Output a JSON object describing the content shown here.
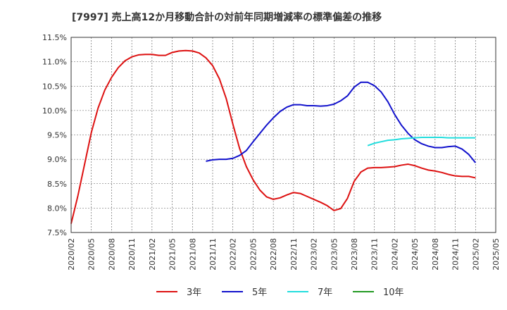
{
  "chart_data": {
    "type": "line",
    "title": "[7997]  売上高12か月移動合計の対前年同期増減率の標準偏差の推移",
    "xlabel": "",
    "ylabel": "",
    "ylim": [
      7.5,
      11.5
    ],
    "y_ticks": [
      "7.5%",
      "8.0%",
      "8.5%",
      "9.0%",
      "9.5%",
      "10.0%",
      "10.5%",
      "11.0%",
      "11.5%"
    ],
    "x_ticks": [
      "2020/02",
      "2020/05",
      "2020/08",
      "2020/11",
      "2021/02",
      "2021/05",
      "2021/08",
      "2021/11",
      "2022/02",
      "2022/05",
      "2022/08",
      "2022/11",
      "2023/02",
      "2023/05",
      "2023/08",
      "2023/11",
      "2024/02",
      "2024/05",
      "2024/08",
      "2024/11",
      "2025/02",
      "2025/05"
    ],
    "grid": true,
    "legend_position": "bottom",
    "series": [
      {
        "name": "3年",
        "color": "#dd1111",
        "start_index": 0,
        "values": [
          7.68,
          8.25,
          8.9,
          9.55,
          10.05,
          10.42,
          10.68,
          10.88,
          11.02,
          11.1,
          11.14,
          11.15,
          11.15,
          11.13,
          11.13,
          11.19,
          11.22,
          11.23,
          11.22,
          11.18,
          11.08,
          10.92,
          10.65,
          10.25,
          9.72,
          9.22,
          8.85,
          8.58,
          8.37,
          8.23,
          8.18,
          8.21,
          8.27,
          8.32,
          8.3,
          8.24,
          8.18,
          8.12,
          8.05,
          7.95,
          7.99,
          8.2,
          8.55,
          8.74,
          8.82,
          8.83,
          8.83,
          8.84,
          8.85,
          8.88,
          8.9,
          8.87,
          8.82,
          8.78,
          8.76,
          8.73,
          8.69,
          8.66,
          8.65,
          8.65,
          8.62
        ]
      },
      {
        "name": "5年",
        "color": "#1111cc",
        "start_index": 20,
        "values": [
          8.96,
          8.99,
          9.0,
          9.0,
          9.02,
          9.08,
          9.18,
          9.36,
          9.53,
          9.7,
          9.85,
          9.98,
          10.07,
          10.12,
          10.12,
          10.1,
          10.1,
          10.09,
          10.1,
          10.13,
          10.2,
          10.3,
          10.48,
          10.58,
          10.58,
          10.51,
          10.38,
          10.18,
          9.92,
          9.7,
          9.53,
          9.4,
          9.32,
          9.27,
          9.24,
          9.24,
          9.26,
          9.27,
          9.21,
          9.1,
          8.93
        ]
      },
      {
        "name": "7年",
        "color": "#22dddd",
        "start_index": 44,
        "values": [
          9.28,
          9.33,
          9.36,
          9.39,
          9.4,
          9.42,
          9.43,
          9.44,
          9.45,
          9.45,
          9.45,
          9.45,
          9.44,
          9.44,
          9.44,
          9.44,
          9.44
        ]
      },
      {
        "name": "10年",
        "color": "#229922",
        "start_index": 0,
        "values": []
      }
    ]
  }
}
